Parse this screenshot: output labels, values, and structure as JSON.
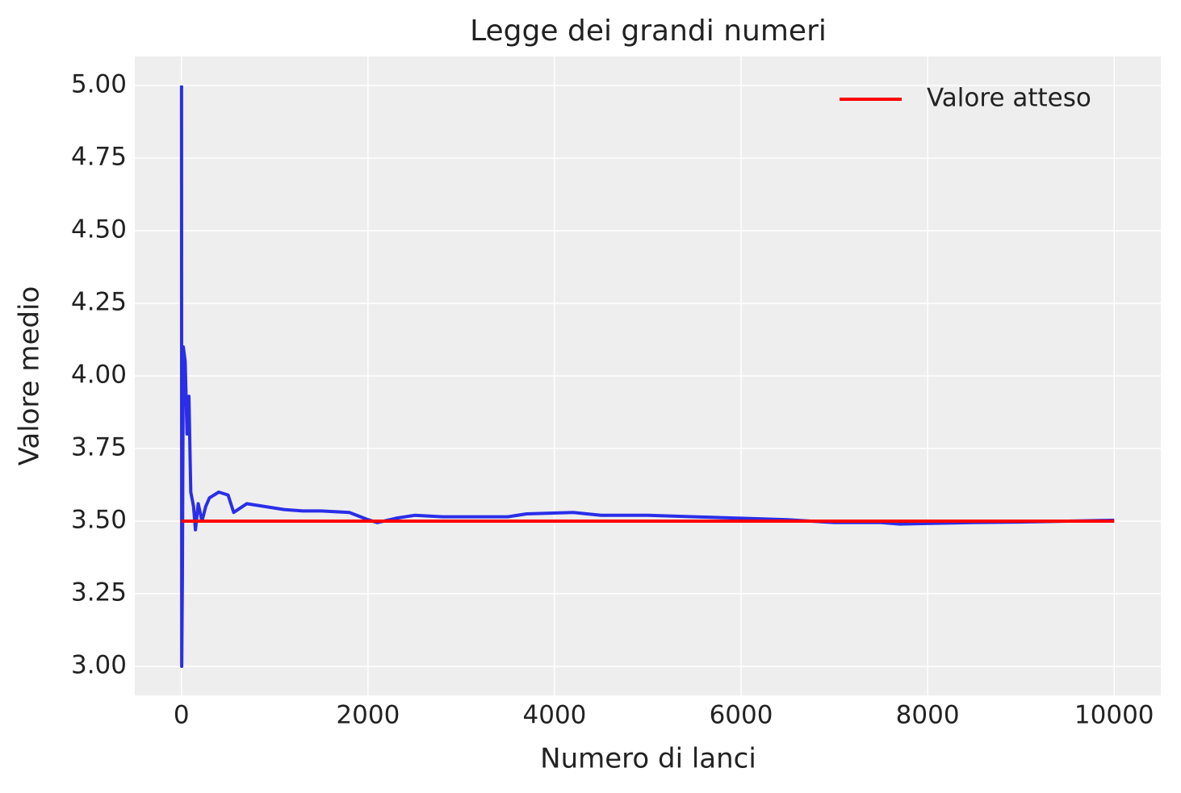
{
  "chart_data": {
    "type": "line",
    "title": "Legge dei grandi numeri",
    "x_label": "Numero di lanci",
    "y_label": "Valore medio",
    "series": [
      {
        "color": "#2a2ee8",
        "x": [
          1,
          3,
          10,
          20,
          40,
          60,
          80,
          100,
          130,
          150,
          180,
          220,
          260,
          300,
          400,
          500,
          560,
          700,
          900,
          1100,
          1300,
          1500,
          1800,
          2000,
          2100,
          2300,
          2500,
          2800,
          3000,
          3500,
          3700,
          4200,
          4500,
          5000,
          5500,
          6000,
          6500,
          7000,
          7500,
          7700,
          8500,
          9000,
          9500,
          10000
        ],
        "values": [
          5.0,
          3.0,
          3.3,
          4.1,
          4.05,
          3.8,
          3.93,
          3.6,
          3.55,
          3.47,
          3.56,
          3.5,
          3.55,
          3.58,
          3.6,
          3.59,
          3.53,
          3.56,
          3.55,
          3.54,
          3.535,
          3.535,
          3.53,
          3.505,
          3.495,
          3.51,
          3.52,
          3.515,
          3.515,
          3.515,
          3.525,
          3.53,
          3.52,
          3.52,
          3.515,
          3.51,
          3.505,
          3.495,
          3.495,
          3.49,
          3.495,
          3.497,
          3.5,
          3.503
        ]
      },
      {
        "name": "Valore atteso",
        "color": "#ff0000",
        "x": [
          0,
          10000
        ],
        "values": [
          3.5,
          3.5
        ]
      }
    ],
    "xlim": [
      -500,
      10500
    ],
    "ylim": [
      2.9,
      5.1
    ],
    "xticks": [
      0,
      2000,
      4000,
      6000,
      8000,
      10000
    ],
    "yticks": [
      {
        "value": 3,
        "label": "3.00"
      },
      {
        "value": 3.25,
        "label": "3.25"
      },
      {
        "value": 3.5,
        "label": "3.50"
      },
      {
        "value": 3.75,
        "label": "3.75"
      },
      {
        "value": 4,
        "label": "4.00"
      },
      {
        "value": 4.25,
        "label": "4.25"
      },
      {
        "value": 4.5,
        "label": "4.50"
      },
      {
        "value": 4.75,
        "label": "4.75"
      },
      {
        "value": 5,
        "label": "5.00"
      }
    ],
    "grid": true,
    "legend": "upper right"
  }
}
